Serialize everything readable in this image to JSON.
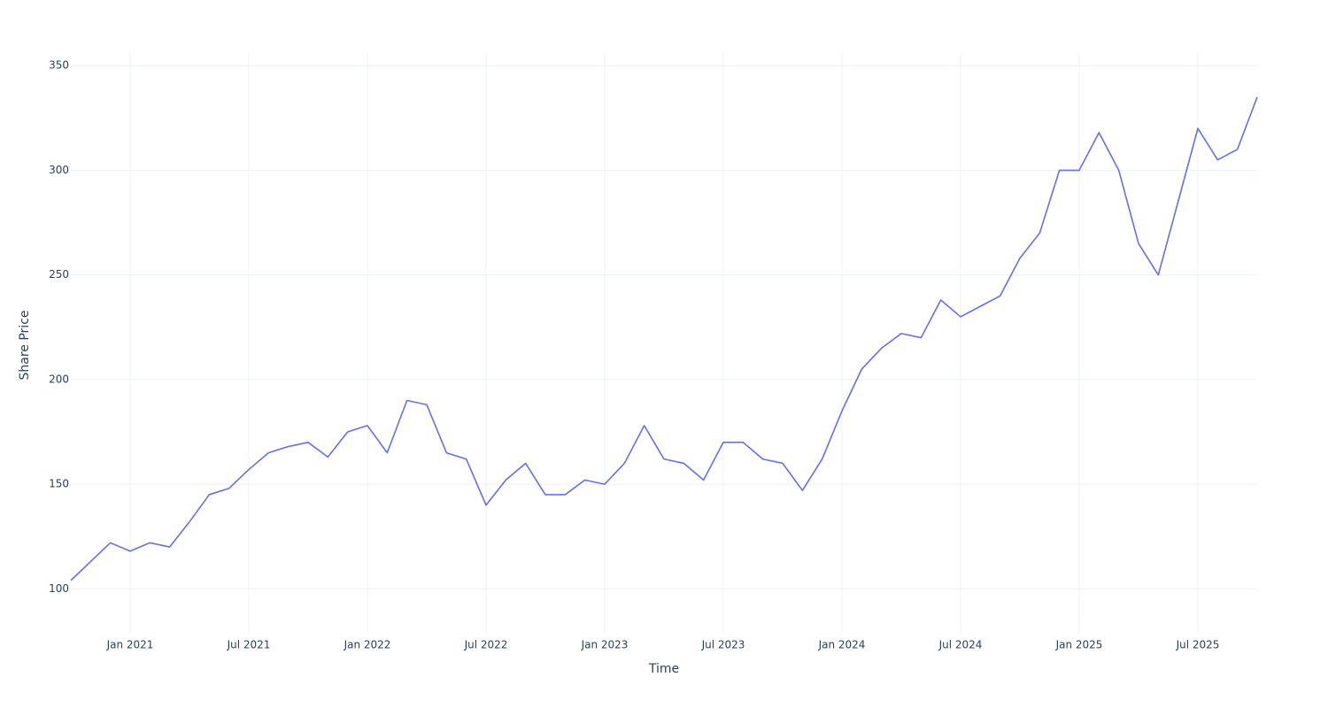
{
  "chart_data": {
    "type": "line",
    "x_label": "Time",
    "y_label": "Share Price",
    "x": [
      "2020-10",
      "2020-11",
      "2020-12",
      "2021-01",
      "2021-02",
      "2021-03",
      "2021-04",
      "2021-05",
      "2021-06",
      "2021-07",
      "2021-08",
      "2021-09",
      "2021-10",
      "2021-11",
      "2021-12",
      "2022-01",
      "2022-02",
      "2022-03",
      "2022-04",
      "2022-05",
      "2022-06",
      "2022-07",
      "2022-08",
      "2022-09",
      "2022-10",
      "2022-11",
      "2022-12",
      "2023-01",
      "2023-02",
      "2023-03",
      "2023-04",
      "2023-05",
      "2023-06",
      "2023-07",
      "2023-08",
      "2023-09",
      "2023-10",
      "2023-11",
      "2023-12",
      "2024-01",
      "2024-02",
      "2024-03",
      "2024-04",
      "2024-05",
      "2024-06",
      "2024-07",
      "2024-08",
      "2024-09",
      "2024-10",
      "2024-11",
      "2024-12",
      "2025-01",
      "2025-02",
      "2025-03",
      "2025-04",
      "2025-05",
      "2025-06",
      "2025-07",
      "2025-08",
      "2025-09",
      "2025-10"
    ],
    "series": [
      {
        "name": "Share Price",
        "color": "#636efa",
        "values": [
          104,
          113,
          122,
          118,
          122,
          120,
          132,
          145,
          148,
          157,
          165,
          168,
          170,
          163,
          175,
          178,
          165,
          190,
          188,
          165,
          162,
          140,
          152,
          160,
          145,
          145,
          152,
          150,
          160,
          178,
          162,
          160,
          152,
          170,
          170,
          162,
          160,
          147,
          162,
          185,
          205,
          215,
          222,
          220,
          238,
          230,
          235,
          240,
          258,
          270,
          300,
          300,
          318,
          300,
          265,
          250,
          285,
          320,
          305,
          310,
          335
        ]
      }
    ],
    "xlim": [
      "2020-10",
      "2025-10"
    ],
    "xticks": [
      {
        "value": "2021-01",
        "label": "Jan 2021"
      },
      {
        "value": "2021-07",
        "label": "Jul 2021"
      },
      {
        "value": "2022-01",
        "label": "Jan 2022"
      },
      {
        "value": "2022-07",
        "label": "Jul 2022"
      },
      {
        "value": "2023-01",
        "label": "Jan 2023"
      },
      {
        "value": "2023-07",
        "label": "Jul 2023"
      },
      {
        "value": "2024-01",
        "label": "Jan 2024"
      },
      {
        "value": "2024-07",
        "label": "Jul 2024"
      },
      {
        "value": "2025-01",
        "label": "Jan 2025"
      },
      {
        "value": "2025-07",
        "label": "Jul 2025"
      }
    ],
    "ylim": [
      79,
      356
    ],
    "yticks": [
      100,
      150,
      200,
      250,
      300,
      350
    ],
    "grid": true
  }
}
